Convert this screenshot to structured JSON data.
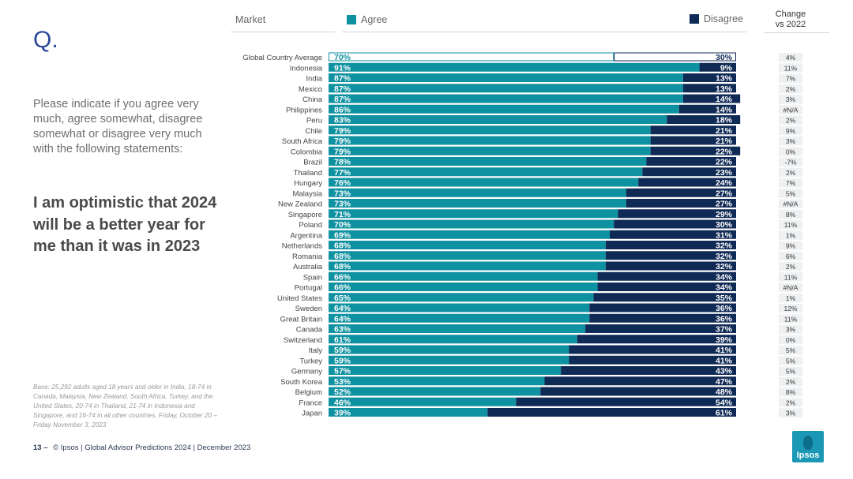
{
  "slide": {
    "q_label": "Q.",
    "question": "Please indicate if you agree very much, agree somewhat, disagree somewhat or disagree very much with the following statements:",
    "statement": "I am optimistic that 2024 will be a better year for me than it was in 2023",
    "base_note": "Base: 25,292 adults aged 18 years and older in India, 18-74 in Canada, Malaysia, New Zealand, South Africa, Turkey, and the United States, 20-74 in Thailand, 21-74 in Indonesia and Singapore, and 16-74 in all other countries. Friday, October 20 – Friday November 3, 2023",
    "page_number": "13 –",
    "footer": "© Ipsos | Global Advisor Predictions 2024 | December 2023",
    "logo_text": "Ipsos"
  },
  "colors": {
    "agree": "#0e91a0",
    "disagree": "#102a56",
    "accent": "#2c4a9a"
  },
  "chart_data": {
    "type": "bar",
    "orientation": "horizontal-stacked",
    "header_market": "Market",
    "header_change": "Change vs 2022",
    "series": [
      {
        "name": "Agree",
        "values": [
          70,
          91,
          87,
          87,
          87,
          86,
          83,
          79,
          79,
          79,
          78,
          77,
          76,
          73,
          73,
          71,
          70,
          69,
          68,
          68,
          68,
          66,
          66,
          65,
          64,
          64,
          63,
          61,
          59,
          59,
          57,
          53,
          52,
          46,
          39
        ]
      },
      {
        "name": "Disagree",
        "values": [
          30,
          9,
          13,
          13,
          14,
          14,
          18,
          21,
          21,
          22,
          22,
          23,
          24,
          27,
          27,
          29,
          30,
          31,
          32,
          32,
          32,
          34,
          34,
          35,
          36,
          36,
          37,
          39,
          41,
          41,
          43,
          47,
          48,
          54,
          61
        ]
      }
    ],
    "categories": [
      "Global Country Average",
      "Indonesia",
      "India",
      "Mexico",
      "China",
      "Philippines",
      "Peru",
      "Chile",
      "South Africa",
      "Colombia",
      "Brazil",
      "Thailand",
      "Hungary",
      "Malaysia",
      "New Zealand",
      "Singapore",
      "Poland",
      "Argentina",
      "Netherlands",
      "Romania",
      "Australia",
      "Spain",
      "Portugal",
      "United States",
      "Sweden",
      "Great Britain",
      "Canada",
      "Switzerland",
      "Italy",
      "Turkey",
      "Germany",
      "South Korea",
      "Belgium",
      "France",
      "Japan"
    ],
    "change": [
      "4%",
      "11%",
      "7%",
      "2%",
      "3%",
      "#N/A",
      "2%",
      "9%",
      "3%",
      "0%",
      "-7%",
      "2%",
      "7%",
      "5%",
      "#N/A",
      "8%",
      "11%",
      "1%",
      "9%",
      "6%",
      "2%",
      "11%",
      "#N/A",
      "1%",
      "12%",
      "11%",
      "3%",
      "0%",
      "5%",
      "5%",
      "5%",
      "2%",
      "8%",
      "2%",
      "3%"
    ],
    "highlight_first_row": true,
    "xlim": [
      0,
      100
    ]
  }
}
